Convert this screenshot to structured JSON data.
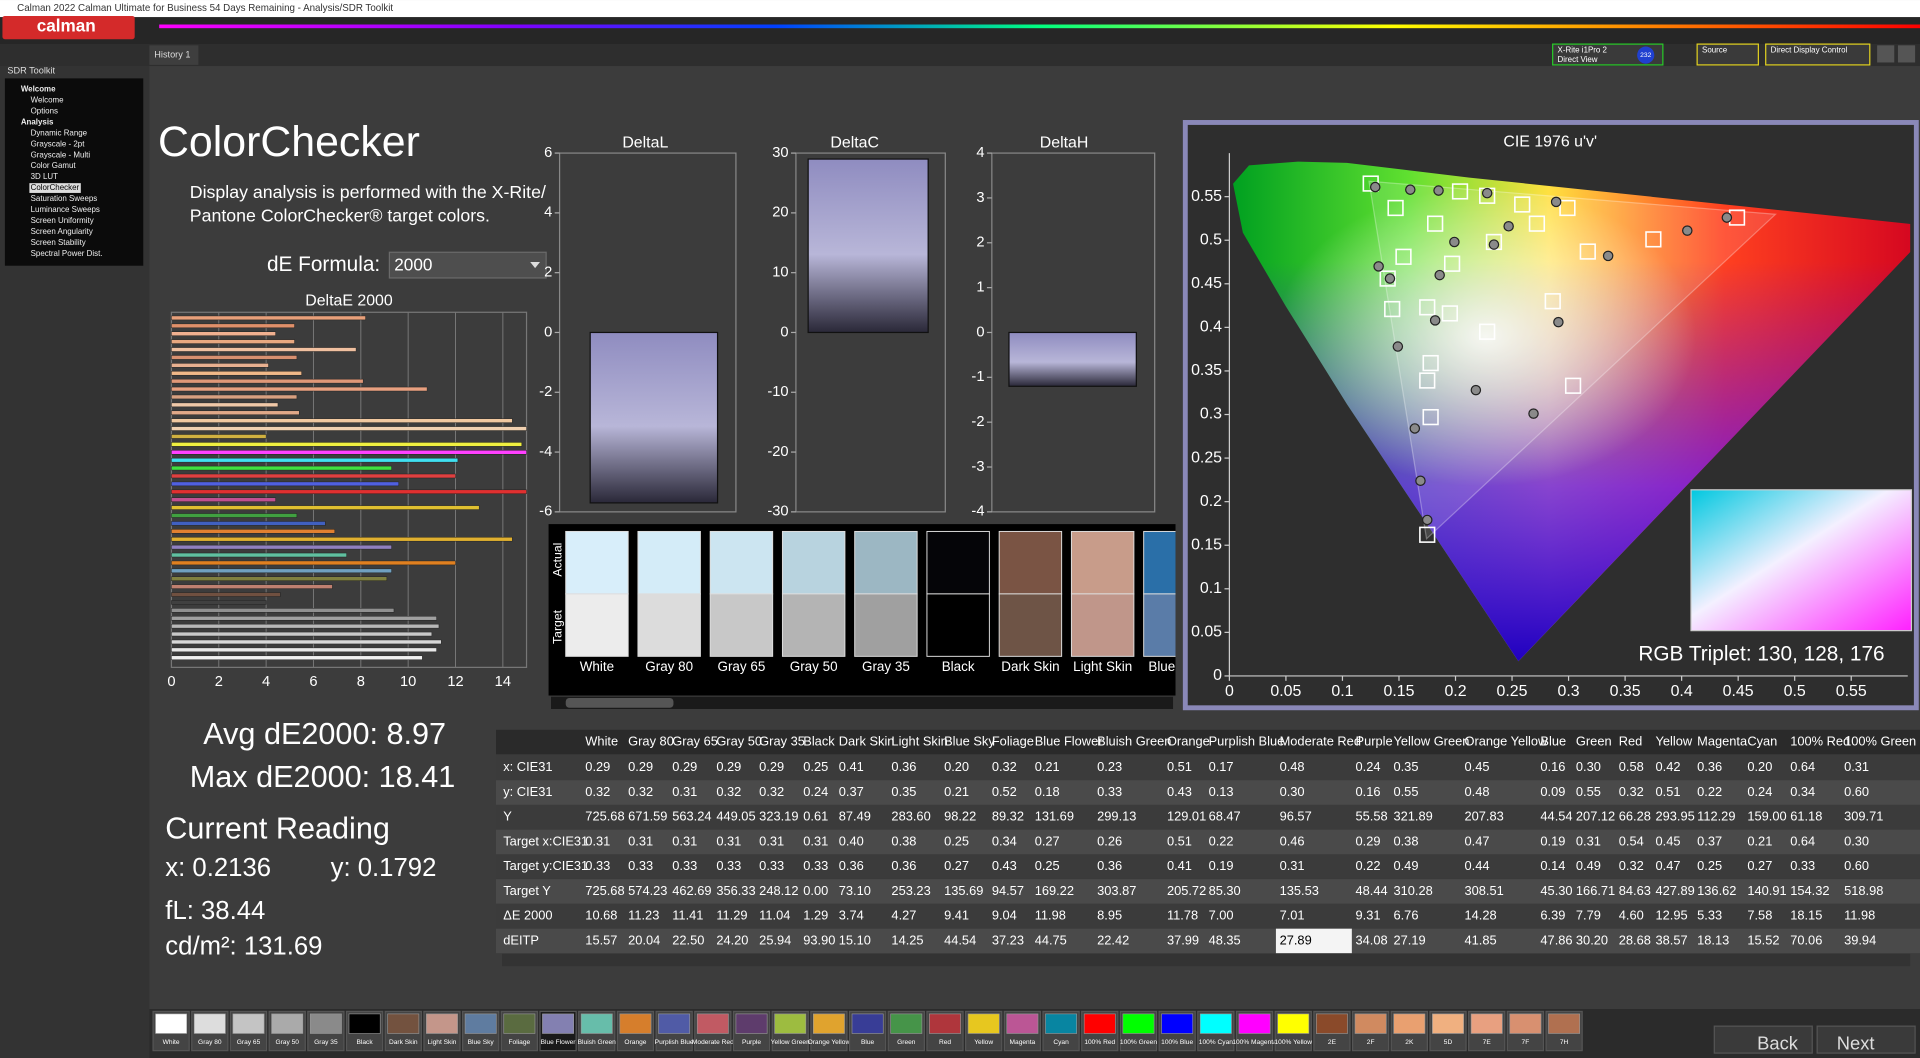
{
  "window": {
    "title": "Calman 2022 Calman Ultimate for Business 54 Days Remaining - Analysis/SDR Toolkit",
    "logo": "calman",
    "tab": "History 1",
    "meter": "X-Rite i1Pro 2",
    "meter_mode": "Direct View",
    "badge": "232",
    "source": "Source",
    "display": "Direct Display Control"
  },
  "sidebar": {
    "title": "SDR Toolkit",
    "items": [
      {
        "text": "Welcome",
        "level": 0
      },
      {
        "text": "Welcome",
        "level": 1
      },
      {
        "text": "Options",
        "level": 1
      },
      {
        "text": "Analysis",
        "level": 0
      },
      {
        "text": "Dynamic Range",
        "level": 1
      },
      {
        "text": "Grayscale - 2pt",
        "level": 1
      },
      {
        "text": "Grayscale - Multi",
        "level": 1
      },
      {
        "text": "Color Gamut",
        "level": 1
      },
      {
        "text": "3D LUT",
        "level": 1
      },
      {
        "text": "ColorChecker",
        "level": 1
      },
      {
        "text": "Saturation Sweeps",
        "level": 1
      },
      {
        "text": "Luminance Sweeps",
        "level": 1
      },
      {
        "text": "Screen Uniformity",
        "level": 1
      },
      {
        "text": "Screen Angularity",
        "level": 1
      },
      {
        "text": "Screen Stability",
        "level": 1
      },
      {
        "text": "Spectral Power Dist.",
        "level": 1
      }
    ]
  },
  "page": {
    "heading": "ColorChecker",
    "description": [
      "Display analysis is performed with the X-Rite/",
      "Pantone ColorChecker® target colors."
    ],
    "formula_label": "dE Formula:",
    "formula": "2000"
  },
  "stats": {
    "avg": "Avg dE2000: 8.97",
    "max": "Max dE2000: 18.41",
    "current": "Current Reading",
    "x": "x: 0.2136",
    "y": "y: 0.1792",
    "fl": "fL: 38.44",
    "cdm2": "cd/m²: 131.69"
  },
  "swatches": {
    "row_labels": [
      "Actual",
      "Target"
    ],
    "items": [
      {
        "name": "White",
        "actual": "#d8eefa",
        "target": "#ececec"
      },
      {
        "name": "Gray 80",
        "actual": "#d4ecf8",
        "target": "#dcdcdc"
      },
      {
        "name": "Gray 65",
        "actual": "#cce5f1",
        "target": "#c8c8c8"
      },
      {
        "name": "Gray 50",
        "actual": "#b8d3df",
        "target": "#b4b4b4"
      },
      {
        "name": "Gray 35",
        "actual": "#9cb7c3",
        "target": "#a0a0a0"
      },
      {
        "name": "Black",
        "actual": "#050508",
        "target": "#000000"
      },
      {
        "name": "Dark Skin",
        "actual": "#7a5444",
        "target": "#6e5446"
      },
      {
        "name": "Light Skin",
        "actual": "#c89c8a",
        "target": "#c0968a"
      },
      {
        "name": "Blue Sky",
        "actual": "#2a6fa8",
        "target": "#5a7ca8"
      }
    ]
  },
  "table": {
    "columns": [
      "White",
      "Gray 80",
      "Gray 65",
      "Gray 50",
      "Gray 35",
      "Black",
      "Dark Skin",
      "Light Skin",
      "Blue Sky",
      "Foliage",
      "Blue Flower",
      "Bluish Green",
      "Orange",
      "Purplish Blue",
      "Moderate Red",
      "Purple",
      "Yellow Green",
      "Orange Yellow",
      "Blue",
      "Green",
      "Red",
      "Yellow",
      "Magenta",
      "Cyan",
      "100% Red",
      "100% Green"
    ],
    "rows": [
      {
        "label": "x: CIE31",
        "cells": [
          "0.29",
          "0.29",
          "0.29",
          "0.29",
          "0.29",
          "0.25",
          "0.41",
          "0.36",
          "0.20",
          "0.32",
          "0.21",
          "0.23",
          "0.51",
          "0.17",
          "0.48",
          "0.24",
          "0.35",
          "0.45",
          "0.16",
          "0.30",
          "0.58",
          "0.42",
          "0.36",
          "0.20",
          "0.64",
          "0.31"
        ]
      },
      {
        "label": "y: CIE31",
        "cells": [
          "0.32",
          "0.32",
          "0.31",
          "0.32",
          "0.32",
          "0.24",
          "0.37",
          "0.35",
          "0.21",
          "0.52",
          "0.18",
          "0.33",
          "0.43",
          "0.13",
          "0.30",
          "0.16",
          "0.55",
          "0.48",
          "0.09",
          "0.55",
          "0.32",
          "0.51",
          "0.22",
          "0.24",
          "0.34",
          "0.60"
        ]
      },
      {
        "label": "Y",
        "cells": [
          "725.68",
          "671.59",
          "563.24",
          "449.05",
          "323.19",
          "0.61",
          "87.49",
          "283.60",
          "98.22",
          "89.32",
          "131.69",
          "299.13",
          "129.01",
          "68.47",
          "96.57",
          "55.58",
          "321.89",
          "207.83",
          "44.54",
          "207.12",
          "66.28",
          "293.95",
          "112.29",
          "159.00",
          "61.18",
          "309.71"
        ]
      },
      {
        "label": "Target x:CIE31",
        "cells": [
          "0.31",
          "0.31",
          "0.31",
          "0.31",
          "0.31",
          "0.31",
          "0.40",
          "0.38",
          "0.25",
          "0.34",
          "0.27",
          "0.26",
          "0.51",
          "0.22",
          "0.46",
          "0.29",
          "0.38",
          "0.47",
          "0.19",
          "0.31",
          "0.54",
          "0.45",
          "0.37",
          "0.21",
          "0.64",
          "0.30"
        ]
      },
      {
        "label": "Target y:CIE31",
        "cells": [
          "0.33",
          "0.33",
          "0.33",
          "0.33",
          "0.33",
          "0.33",
          "0.36",
          "0.36",
          "0.27",
          "0.43",
          "0.25",
          "0.36",
          "0.41",
          "0.19",
          "0.31",
          "0.22",
          "0.49",
          "0.44",
          "0.14",
          "0.49",
          "0.32",
          "0.47",
          "0.25",
          "0.27",
          "0.33",
          "0.60"
        ]
      },
      {
        "label": "Target Y",
        "cells": [
          "725.68",
          "574.23",
          "462.69",
          "356.33",
          "248.12",
          "0.00",
          "73.10",
          "253.23",
          "135.69",
          "94.57",
          "169.22",
          "303.87",
          "205.72",
          "85.30",
          "135.53",
          "48.44",
          "310.28",
          "308.51",
          "45.30",
          "166.71",
          "84.63",
          "427.89",
          "136.62",
          "140.91",
          "154.32",
          "518.98"
        ]
      },
      {
        "label": "ΔE 2000",
        "cells": [
          "10.68",
          "11.23",
          "11.41",
          "11.29",
          "11.04",
          "1.29",
          "3.74",
          "4.27",
          "9.41",
          "9.04",
          "11.98",
          "8.95",
          "11.78",
          "7.00",
          "7.01",
          "9.31",
          "6.76",
          "14.28",
          "6.39",
          "7.79",
          "4.60",
          "12.95",
          "5.33",
          "7.58",
          "18.15",
          "11.98"
        ]
      },
      {
        "label": "dEITP",
        "cells": [
          "15.57",
          "20.04",
          "22.50",
          "24.20",
          "25.94",
          "93.90",
          "15.10",
          "14.25",
          "44.54",
          "37.23",
          "44.75",
          "22.42",
          "37.99",
          "48.35",
          "27.89",
          "34.08",
          "27.19",
          "41.85",
          "47.86",
          "30.20",
          "28.68",
          "38.57",
          "18.13",
          "15.52",
          "70.06",
          "39.94"
        ]
      }
    ]
  },
  "strip": {
    "items": [
      {
        "name": "White",
        "color": "#ffffff"
      },
      {
        "name": "Gray 80",
        "color": "#dddddd"
      },
      {
        "name": "Gray 65",
        "color": "#c4c4c4"
      },
      {
        "name": "Gray 50",
        "color": "#aaaaaa"
      },
      {
        "name": "Gray 35",
        "color": "#8a8a8a"
      },
      {
        "name": "Black",
        "color": "#000000"
      },
      {
        "name": "Dark Skin",
        "color": "#73523f"
      },
      {
        "name": "Light Skin",
        "color": "#c4968a"
      },
      {
        "name": "Blue Sky",
        "color": "#5f7ca0"
      },
      {
        "name": "Foliage",
        "color": "#5a6b40"
      },
      {
        "name": "Blue Flower",
        "color": "#8380b1"
      },
      {
        "name": "Bluish Green",
        "color": "#67bdaa"
      },
      {
        "name": "Orange",
        "color": "#d67e2c"
      },
      {
        "name": "Purplish Blue",
        "color": "#505ba6"
      },
      {
        "name": "Moderate Red",
        "color": "#c15a63"
      },
      {
        "name": "Purple",
        "color": "#5e3c6c"
      },
      {
        "name": "Yellow Green",
        "color": "#9dbc40"
      },
      {
        "name": "Orange Yellow",
        "color": "#e0a32e"
      },
      {
        "name": "Blue",
        "color": "#383d96"
      },
      {
        "name": "Green",
        "color": "#469449"
      },
      {
        "name": "Red",
        "color": "#af363c"
      },
      {
        "name": "Yellow",
        "color": "#e7c71f"
      },
      {
        "name": "Magenta",
        "color": "#bb5695"
      },
      {
        "name": "Cyan",
        "color": "#0885a1"
      },
      {
        "name": "100% Red",
        "color": "#ff0000"
      },
      {
        "name": "100% Green",
        "color": "#00ff00"
      },
      {
        "name": "100% Blue",
        "color": "#0000ff"
      },
      {
        "name": "100% Cyan",
        "color": "#00ffff"
      },
      {
        "name": "100% Magenta",
        "color": "#ff00ff"
      },
      {
        "name": "100% Yellow",
        "color": "#ffff00"
      },
      {
        "name": "2E",
        "color": "#8a4a2a"
      },
      {
        "name": "2F",
        "color": "#d08a60"
      },
      {
        "name": "2K",
        "color": "#e9a070"
      },
      {
        "name": "5D",
        "color": "#f0b080"
      },
      {
        "name": "7E",
        "color": "#e8a080"
      },
      {
        "name": "7F",
        "color": "#d89070"
      },
      {
        "name": "7H",
        "color": "#b07050"
      }
    ],
    "back": "Back",
    "next": "Next"
  },
  "chart_data": [
    {
      "type": "hbar",
      "title": "DeltaE 2000",
      "xlim": [
        0,
        15
      ],
      "xticks": [
        0,
        2,
        4,
        6,
        8,
        10,
        12,
        14
      ],
      "grid": true,
      "values": [
        8.2,
        5.2,
        4.4,
        5.2,
        7.8,
        5.3,
        4.1,
        5.5,
        8.1,
        10.8,
        5.3,
        4.5,
        5.4,
        14.4,
        15.0,
        4.0,
        14.8,
        15.0,
        12.1,
        9.3,
        12.0,
        9.6,
        15.0,
        4.4,
        13.0,
        5.3,
        6.5,
        6.9,
        14.4,
        9.3,
        7.4,
        12.0,
        9.3,
        9.1,
        6.8,
        4.6,
        4.0,
        9.4,
        11.2,
        11.3,
        11.0,
        11.4,
        11.2,
        10.6
      ],
      "colors": [
        "#e8a07a",
        "#e0906a",
        "#f0b090",
        "#e8a880",
        "#f0c0a0",
        "#d89070",
        "#e8b090",
        "#f0b888",
        "#e09878",
        "#e8a080",
        "#d8a080",
        "#f0c8a8",
        "#e0a888",
        "#f0c8a0",
        "#f0d0b0",
        "#d0b040",
        "#f0f040",
        "#ff40ff",
        "#40e0f0",
        "#40e040",
        "#e04040",
        "#5060e0",
        "#e03030",
        "#c05090",
        "#e0c030",
        "#40a040",
        "#4060c0",
        "#e08030",
        "#e0b030",
        "#9080c0",
        "#60c0a0",
        "#e08020",
        "#70a0c0",
        "#808040",
        "#c08070",
        "#705040",
        "#404040",
        "#909090",
        "#a0a0a0",
        "#b8b8b8",
        "#c8c8c8",
        "#d8d8d8",
        "#e8e8e8",
        "#f0f0f0"
      ]
    },
    {
      "type": "bar",
      "title": "DeltaL",
      "values": [
        -5.7
      ],
      "ylim": [
        -6,
        6
      ],
      "yticks": [
        -6,
        -4,
        -2,
        0,
        2,
        4,
        6
      ]
    },
    {
      "type": "bar",
      "title": "DeltaC",
      "values": [
        29
      ],
      "ylim": [
        -30,
        30
      ],
      "yticks": [
        -30,
        -20,
        -10,
        0,
        10,
        20,
        30
      ]
    },
    {
      "type": "bar",
      "title": "DeltaH",
      "values": [
        -1.2
      ],
      "ylim": [
        -4,
        4
      ],
      "yticks": [
        -4,
        -3,
        -2,
        -1,
        0,
        1,
        2,
        3,
        4
      ]
    },
    {
      "type": "scatter",
      "title": "CIE 1976 u'v'",
      "xlim": [
        0,
        0.6
      ],
      "ylim": [
        0,
        0.6
      ],
      "xticks": [
        0,
        0.05,
        0.1,
        0.15,
        0.2,
        0.25,
        0.3,
        0.35,
        0.4,
        0.45,
        0.5,
        0.55
      ],
      "yticks": [
        0,
        0.05,
        0.1,
        0.15,
        0.2,
        0.25,
        0.3,
        0.35,
        0.4,
        0.45,
        0.5,
        0.55
      ],
      "annotation": "RGB Triplet: 130, 128, 176",
      "series": [
        {
          "marker": "square",
          "color": "#ffffff",
          "x": [
            0.125,
            0.147,
            0.182,
            0.204,
            0.228,
            0.259,
            0.299,
            0.449,
            0.375,
            0.317,
            0.197,
            0.154,
            0.14,
            0.144,
            0.175,
            0.195,
            0.286,
            0.228,
            0.178,
            0.175,
            0.304,
            0.178,
            0.175,
            0.272,
            0.234
          ],
          "y": [
            0.565,
            0.537,
            0.519,
            0.556,
            0.551,
            0.541,
            0.537,
            0.526,
            0.501,
            0.487,
            0.473,
            0.481,
            0.456,
            0.421,
            0.423,
            0.416,
            0.43,
            0.395,
            0.359,
            0.339,
            0.333,
            0.297,
            0.162,
            0.519,
            0.498
          ]
        },
        {
          "marker": "circle",
          "color": "#8a8a8a",
          "x": [
            0.129,
            0.16,
            0.185,
            0.228,
            0.289,
            0.44,
            0.405,
            0.335,
            0.234,
            0.247,
            0.199,
            0.186,
            0.142,
            0.132,
            0.182,
            0.291,
            0.149,
            0.218,
            0.164,
            0.269,
            0.169,
            0.175
          ],
          "y": [
            0.561,
            0.558,
            0.557,
            0.554,
            0.544,
            0.526,
            0.511,
            0.482,
            0.495,
            0.516,
            0.498,
            0.46,
            0.456,
            0.47,
            0.408,
            0.406,
            0.378,
            0.328,
            0.284,
            0.301,
            0.224,
            0.179
          ]
        }
      ]
    }
  ]
}
